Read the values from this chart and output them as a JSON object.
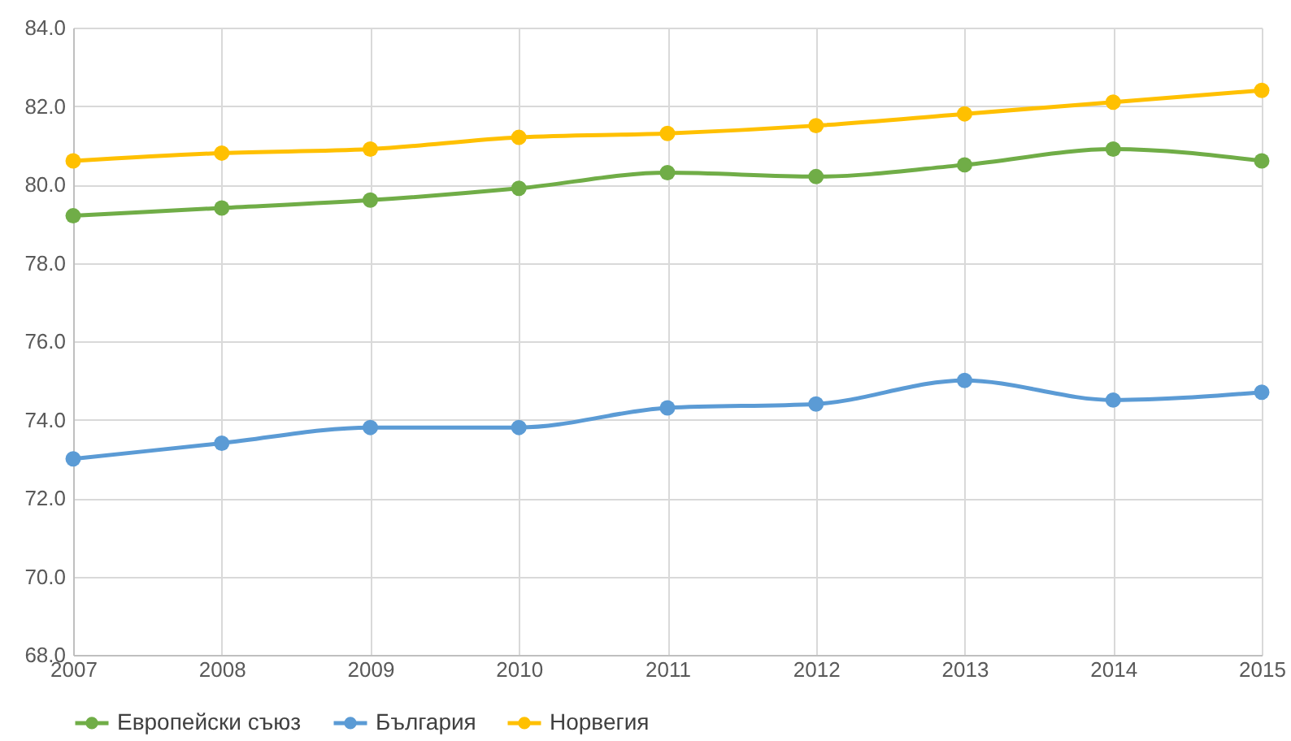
{
  "chart_data": {
    "type": "line",
    "x": [
      2007,
      2008,
      2009,
      2010,
      2011,
      2012,
      2013,
      2014,
      2015
    ],
    "series": [
      {
        "name": "Европейски съюз",
        "color": "#70ad47",
        "values": [
          79.2,
          79.4,
          79.6,
          79.9,
          80.3,
          80.2,
          80.5,
          80.9,
          80.6
        ]
      },
      {
        "name": "България",
        "color": "#5b9bd5",
        "values": [
          73.0,
          73.4,
          73.8,
          73.8,
          74.3,
          74.4,
          75.0,
          74.5,
          74.7
        ]
      },
      {
        "name": "Норвегия",
        "color": "#ffc000",
        "values": [
          80.6,
          80.8,
          80.9,
          81.2,
          81.3,
          81.5,
          81.8,
          82.1,
          82.4
        ]
      }
    ],
    "xlim": [
      2007,
      2015
    ],
    "xticks": [
      2007,
      2008,
      2009,
      2010,
      2011,
      2012,
      2013,
      2014,
      2015
    ],
    "ylim": [
      68,
      84
    ],
    "yticks": [
      {
        "value": 68,
        "label": "68.0"
      },
      {
        "value": 70,
        "label": "70.0"
      },
      {
        "value": 72,
        "label": "72.0"
      },
      {
        "value": 74,
        "label": "74.0"
      },
      {
        "value": 76,
        "label": "76.0"
      },
      {
        "value": 78,
        "label": "78.0"
      },
      {
        "value": 80,
        "label": "80.0"
      },
      {
        "value": 82,
        "label": "82.0"
      },
      {
        "value": 84,
        "label": "84.0"
      }
    ],
    "grid": true,
    "legend": "bottom",
    "marker": "circle",
    "line_style": "solid"
  }
}
